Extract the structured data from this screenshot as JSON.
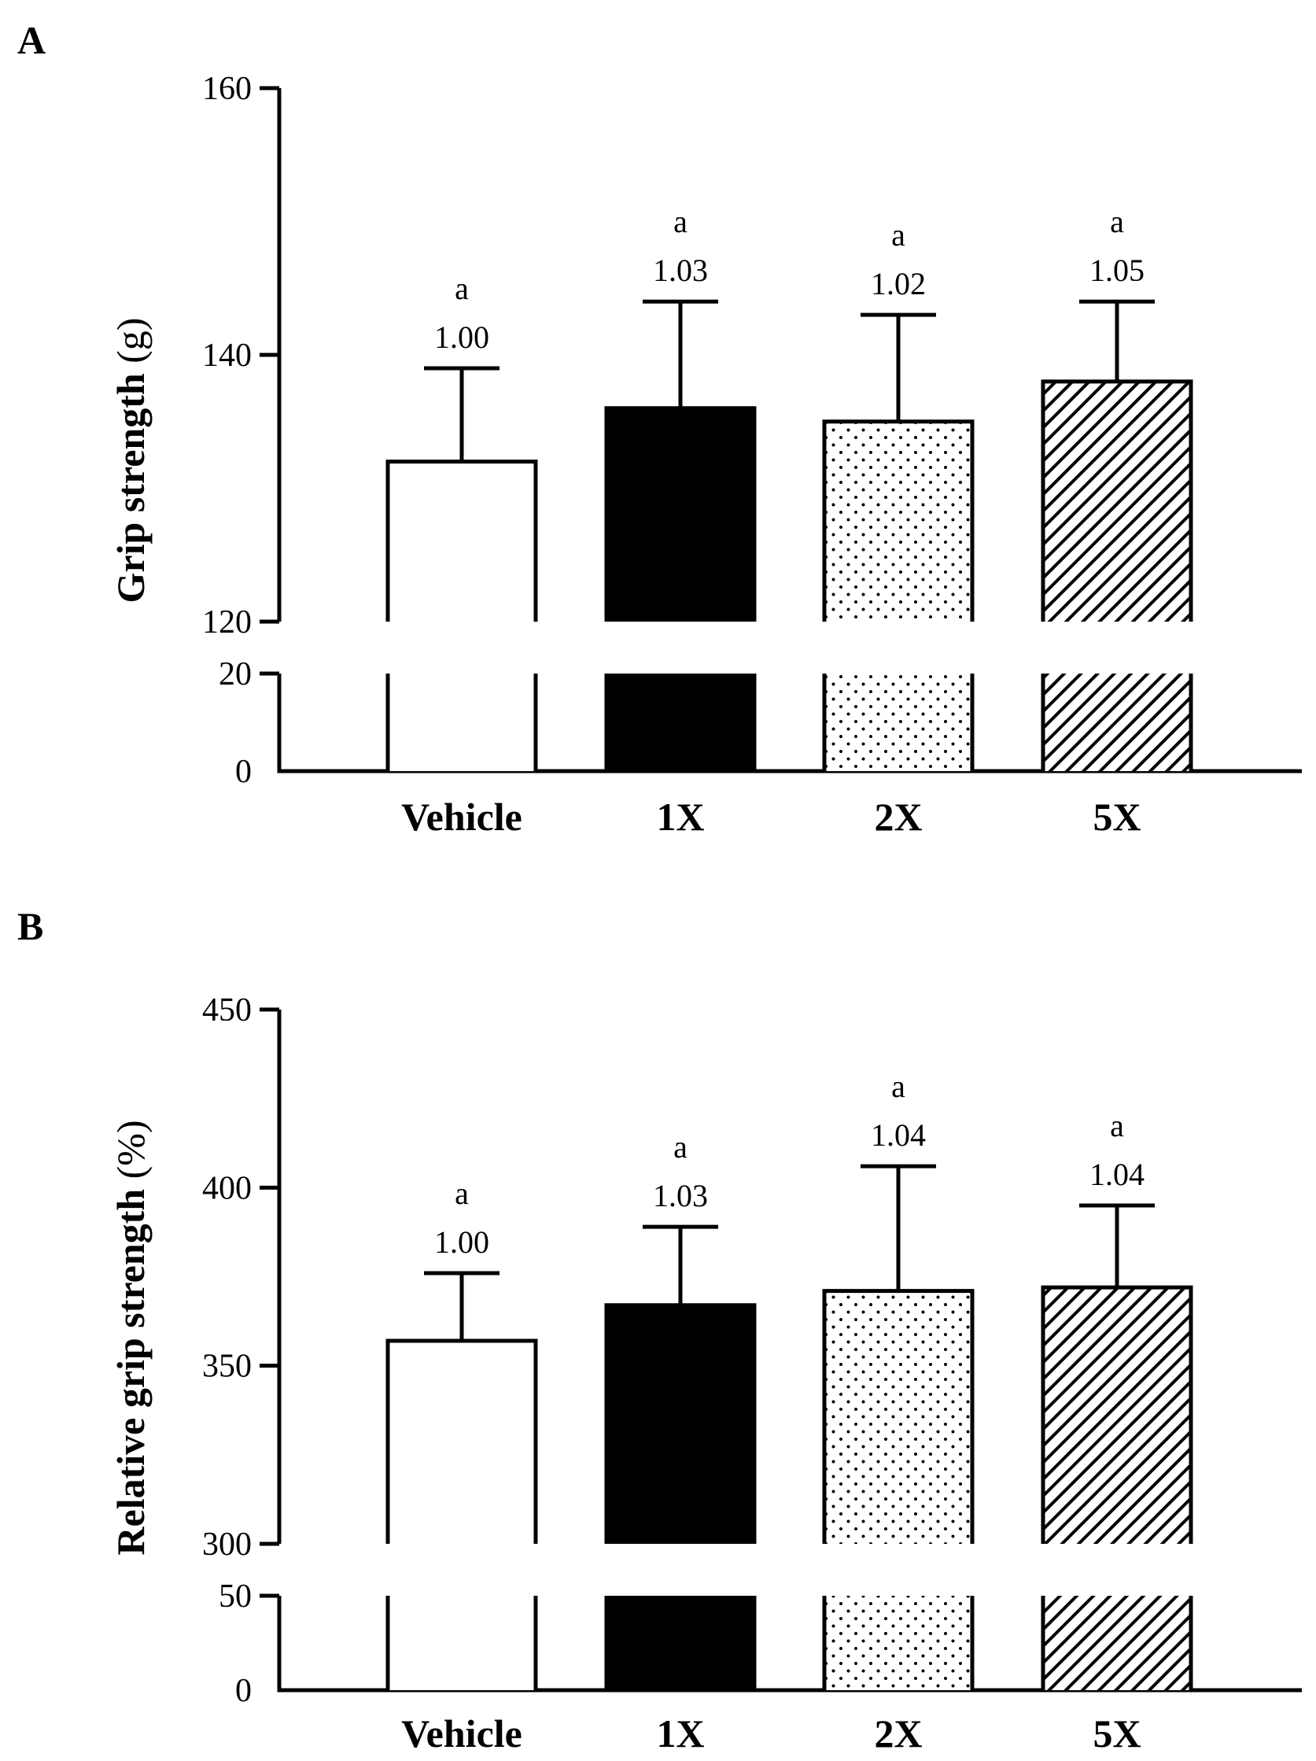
{
  "chart_data": [
    {
      "panel": "A",
      "type": "bar",
      "categories": [
        "Vehicle",
        "1X",
        "2X",
        "5X"
      ],
      "values": [
        132,
        136,
        135,
        138
      ],
      "errors": [
        7,
        8,
        8,
        6
      ],
      "annotations": [
        {
          "letter": "a",
          "ratio": "1.00"
        },
        {
          "letter": "a",
          "ratio": "1.03"
        },
        {
          "letter": "a",
          "ratio": "1.02"
        },
        {
          "letter": "a",
          "ratio": "1.05"
        }
      ],
      "ylabel_bold": "Grip strength",
      "ylabel_unit": "(g)",
      "upper_ticks": [
        "120",
        "140",
        "160"
      ],
      "lower_ticks": [
        "0",
        "20"
      ],
      "ylim_upper": [
        120,
        160
      ],
      "ylim_lower": [
        0,
        20
      ],
      "fills": [
        "white",
        "black",
        "dots",
        "hatch"
      ]
    },
    {
      "panel": "B",
      "type": "bar",
      "categories": [
        "Vehicle",
        "1X",
        "2X",
        "5X"
      ],
      "values": [
        357,
        367,
        371,
        372
      ],
      "errors": [
        19,
        22,
        35,
        23
      ],
      "annotations": [
        {
          "letter": "a",
          "ratio": "1.00"
        },
        {
          "letter": "a",
          "ratio": "1.03"
        },
        {
          "letter": "a",
          "ratio": "1.04"
        },
        {
          "letter": "a",
          "ratio": "1.04"
        }
      ],
      "ylabel_bold": "Relative grip strength",
      "ylabel_unit": "(%)",
      "upper_ticks": [
        "300",
        "350",
        "400",
        "450"
      ],
      "lower_ticks": [
        "0",
        "50"
      ],
      "ylim_upper": [
        300,
        450
      ],
      "ylim_lower": [
        0,
        50
      ],
      "fills": [
        "white",
        "black",
        "dots",
        "hatch"
      ]
    }
  ]
}
